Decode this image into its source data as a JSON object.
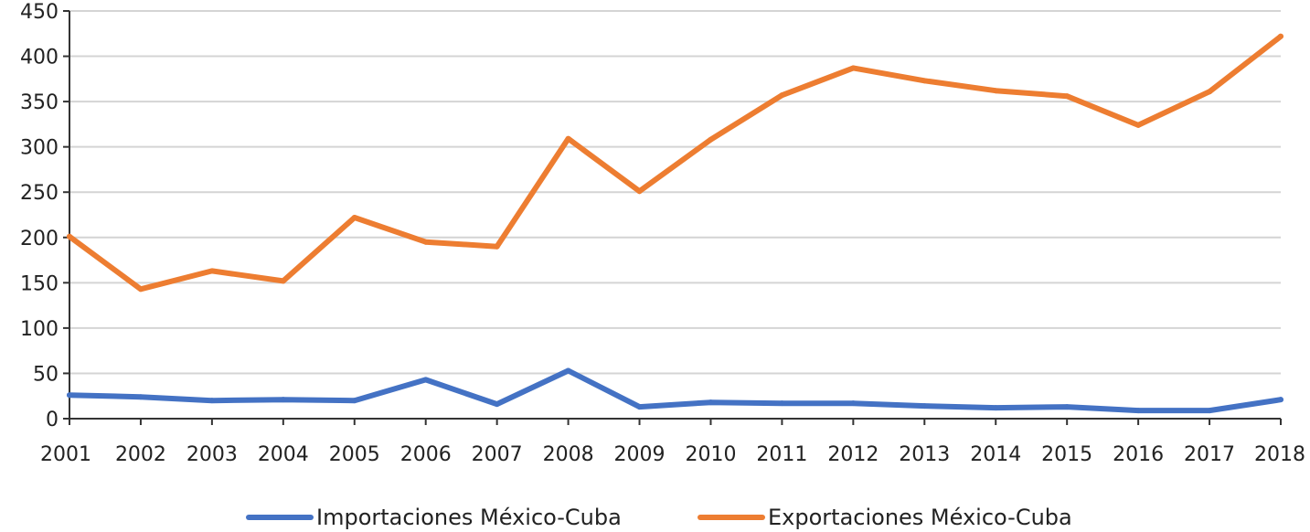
{
  "chart_data": {
    "type": "line",
    "title": "",
    "xlabel": "",
    "ylabel": "",
    "ylim": [
      0,
      450
    ],
    "yticks": [
      "0",
      "50",
      "100",
      "150",
      "200",
      "250",
      "300",
      "350",
      "400",
      "450"
    ],
    "grid": true,
    "legend_position": "bottom",
    "categories": [
      "2001",
      "2002",
      "2003",
      "2004",
      "2005",
      "2006",
      "2007",
      "2008",
      "2009",
      "2010",
      "2011",
      "2012",
      "2013",
      "2014",
      "2015",
      "2016",
      "2017",
      "2018"
    ],
    "series": [
      {
        "name": "Importaciones México-Cuba",
        "color": "#4472c4",
        "values": [
          26,
          24,
          20,
          21,
          20,
          43,
          16,
          53,
          13,
          18,
          17,
          17,
          14,
          12,
          13,
          9,
          9,
          21
        ]
      },
      {
        "name": "Exportaciones México-Cuba",
        "color": "#ed7d31",
        "values": [
          201,
          143,
          163,
          152,
          222,
          195,
          190,
          309,
          251,
          308,
          357,
          387,
          373,
          362,
          356,
          324,
          361,
          422
        ]
      }
    ]
  }
}
